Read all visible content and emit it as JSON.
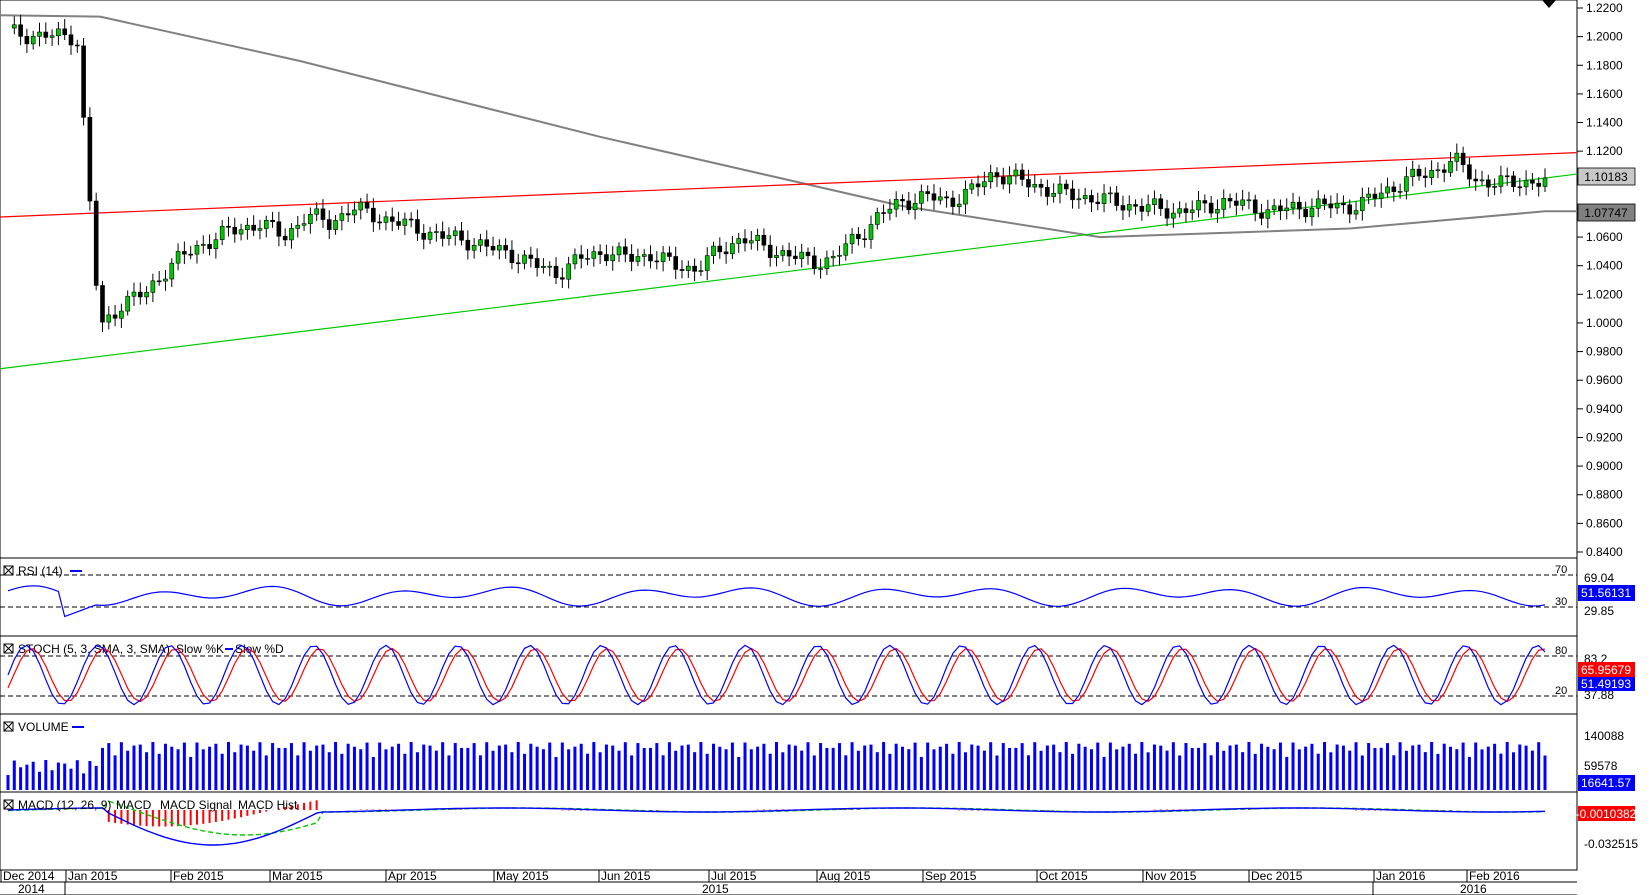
{
  "chart_data": {
    "type": "candlestick",
    "instrument_hint": "",
    "price_axis": {
      "ticks": [
        "1.2200",
        "1.2000",
        "1.1800",
        "1.1600",
        "1.1400",
        "1.1200",
        "1.1000",
        "1.0800",
        "1.0600",
        "1.0400",
        "1.0200",
        "1.0000",
        "0.9800",
        "0.9600",
        "0.9400",
        "0.9200",
        "0.9000",
        "0.8800",
        "0.8600",
        "0.8400"
      ],
      "ylim": [
        0.84,
        1.22
      ],
      "current_price_label": "1.10183",
      "sma_label": "1.07747"
    },
    "time_axis": {
      "months": [
        "Dec 2014",
        "Jan 2015",
        "Feb 2015",
        "Mar 2015",
        "Apr 2015",
        "May 2015",
        "Jun 2015",
        "Jul 2015",
        "Aug 2015",
        "Sep 2015",
        "Oct 2015",
        "Nov 2015",
        "Dec 2015",
        "Jan 2016",
        "Feb 2016"
      ],
      "years": [
        "2014",
        "2015",
        "2016"
      ]
    },
    "closes": [
      1.203,
      1.201,
      1.2,
      1.201,
      0.995,
      1.015,
      1.02,
      1.04,
      1.05,
      1.06,
      1.065,
      1.07,
      1.06,
      1.075,
      1.07,
      1.08,
      1.075,
      1.07,
      1.065,
      1.06,
      1.058,
      1.052,
      1.048,
      1.04,
      1.035,
      1.045,
      1.05,
      1.045,
      1.048,
      1.04,
      1.038,
      1.05,
      1.06,
      1.052,
      1.048,
      1.042,
      1.045,
      1.06,
      1.075,
      1.085,
      1.088,
      1.085,
      1.092,
      1.105,
      1.1,
      1.095,
      1.09,
      1.088,
      1.085,
      1.082,
      1.08,
      1.078,
      1.08,
      1.085,
      1.082,
      1.078,
      1.08,
      1.082,
      1.081,
      1.083,
      1.092,
      1.1,
      1.105,
      1.114,
      1.1,
      1.097,
      1.099,
      1.098
    ],
    "trendlines": [
      {
        "name": "resistance",
        "color": "#ff0000"
      },
      {
        "name": "support",
        "color": "#00c800"
      }
    ],
    "sma": {
      "name": "",
      "color": "#808080"
    },
    "indicators": {
      "rsi": {
        "title": "RSI (14)",
        "levels": [
          "70",
          "30"
        ],
        "scale_labels": [
          "69.04",
          "29.85"
        ],
        "current": "51.56131",
        "color": "#0000ff"
      },
      "stoch": {
        "title": "STOCH (5, 3, SMA, 3, SMA)",
        "slow_k_label": "Slow %K",
        "slow_d_label": "Slow %D",
        "levels": [
          "80",
          "20"
        ],
        "scale_labels": [
          "83.2",
          "37.88"
        ],
        "current_d": "65.95679",
        "current_k": "51.49193",
        "k_color": "#0000ff",
        "d_color": "#ff0000"
      },
      "volume": {
        "title": "VOLUME",
        "scale_labels": [
          "140088",
          "59578"
        ],
        "current": "16641.57",
        "color": "#0000ff"
      },
      "macd": {
        "title": "MACD (12, 26, 9)",
        "macd_label": "MACD",
        "signal_label": "MACD Signal",
        "hist_label": "MACD Hist",
        "scale_labels": [
          "-0.032515"
        ],
        "current": "-0.0010382",
        "macd_color": "#0000ff",
        "signal_color": "#00c800",
        "hist_color": "#ff0000"
      }
    }
  }
}
